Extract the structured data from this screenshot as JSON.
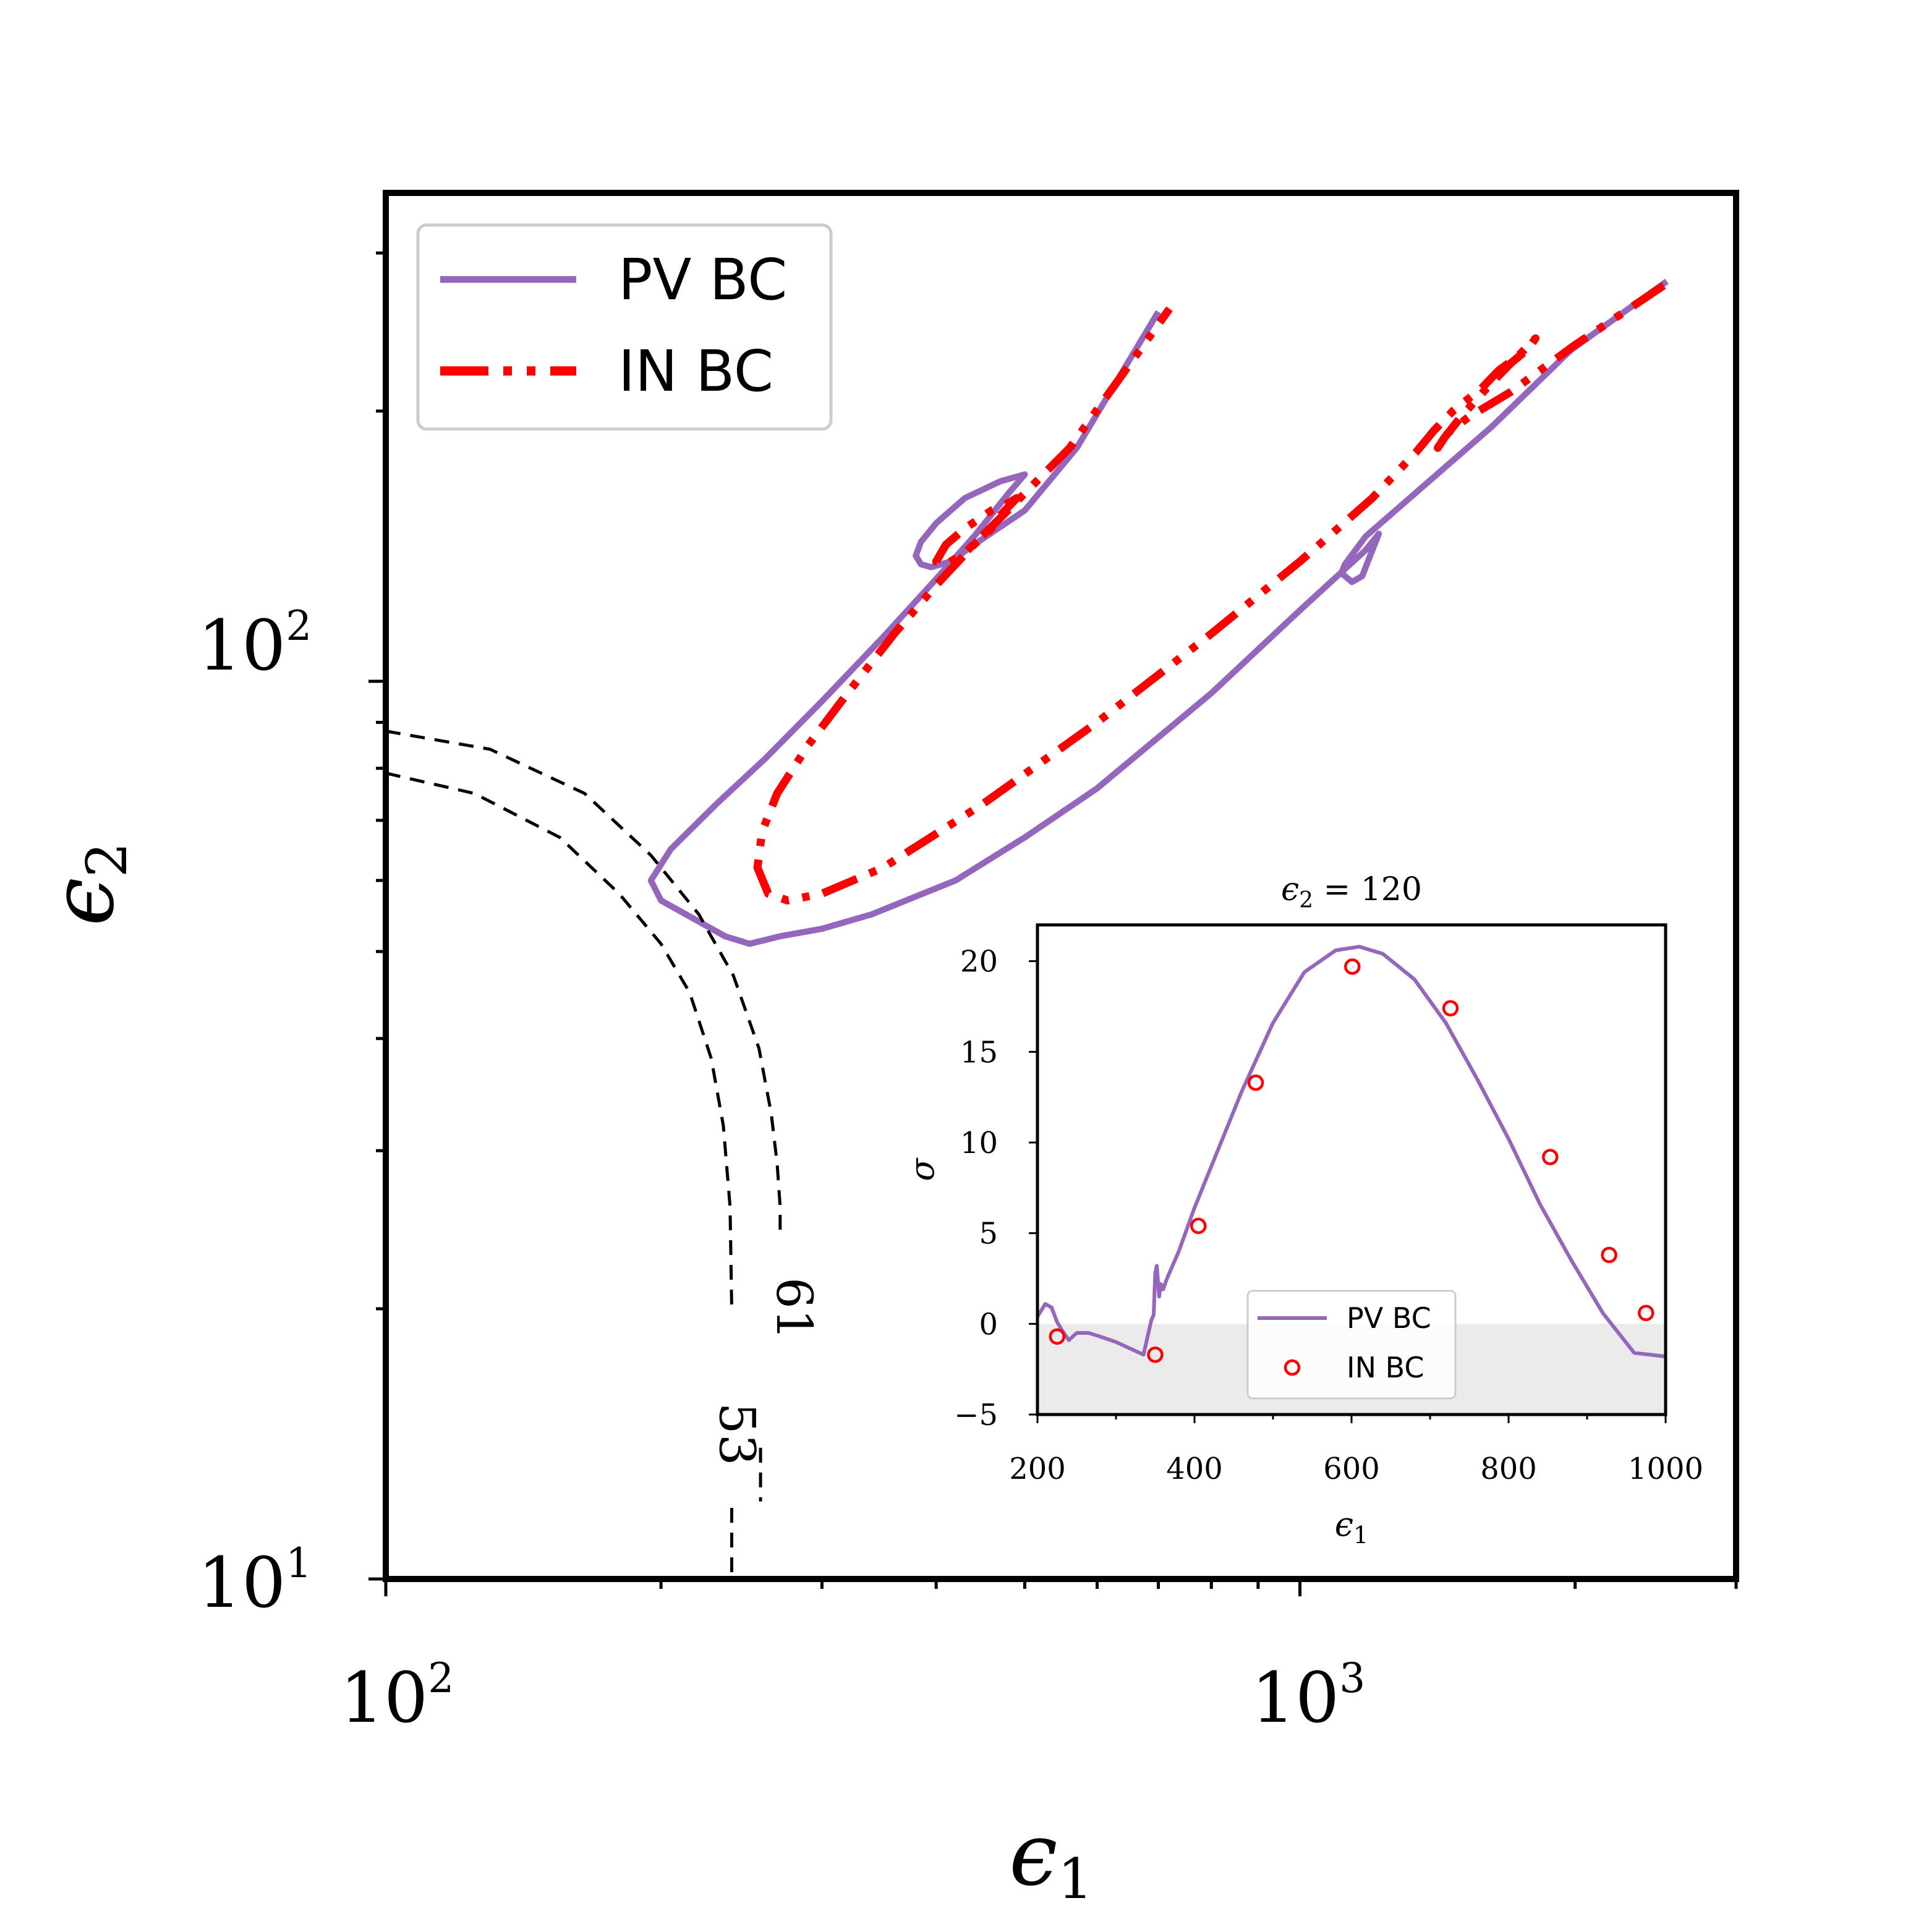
{
  "chart_data": [
    {
      "type": "line",
      "xlabel": "ϵ",
      "xlabel_sub": "1",
      "ylabel": "ϵ",
      "ylabel_sub": "2",
      "xscale": "log",
      "yscale": "log",
      "xlim": [
        100,
        3000
      ],
      "ylim": [
        10,
        350
      ],
      "x_tick_labels": [
        {
          "value": 100,
          "base": "10",
          "exp": "2"
        },
        {
          "value": 1000,
          "base": "10",
          "exp": "3"
        }
      ],
      "y_tick_labels": [
        {
          "value": 10,
          "base": "10",
          "exp": "1"
        },
        {
          "value": 100,
          "base": "10",
          "exp": "2"
        }
      ],
      "legend": {
        "position": "top-left",
        "entries": [
          "PV BC",
          "IN BC"
        ]
      },
      "series": [
        {
          "name": "PV BC",
          "color": "#9467bd",
          "style": "solid",
          "segments": [
            [
              [
                2520,
                279
              ],
              [
                1980,
                234
              ],
              [
                1620,
                192
              ],
              [
                1180,
                145
              ],
              [
                1120,
                135
              ],
              [
                1110,
                132
              ],
              [
                1140,
                129
              ],
              [
                1170,
                131
              ],
              [
                1190,
                137
              ],
              [
                1220,
                146
              ],
              [
                1180,
                140
              ],
              [
                1000,
                120
              ],
              [
                800,
                97
              ],
              [
                600,
                76
              ],
              [
                500,
                67
              ],
              [
                420,
                60
              ],
              [
                340,
                55
              ],
              [
                300,
                53
              ],
              [
                270,
                52
              ],
              [
                250,
                51
              ],
              [
                235,
                52
              ],
              [
                220,
                54
              ],
              [
                200,
                57
              ],
              [
                195,
                60
              ],
              [
                205,
                65
              ],
              [
                230,
                73
              ],
              [
                260,
                82
              ],
              [
                300,
                95
              ],
              [
                350,
                112
              ],
              [
                400,
                130
              ],
              [
                440,
                145
              ],
              [
                480,
                162
              ],
              [
                500,
                170
              ],
              [
                470,
                167
              ],
              [
                430,
                160
              ],
              [
                400,
                150
              ],
              [
                385,
                143
              ],
              [
                380,
                138
              ],
              [
                385,
                135
              ],
              [
                395,
                134
              ],
              [
                415,
                136
              ],
              [
                440,
                142
              ],
              [
                500,
                155
              ],
              [
                570,
                182
              ],
              [
                700,
                258
              ]
            ]
          ]
        },
        {
          "name": "IN BC",
          "color": "#ff0000",
          "style": "dashdot",
          "segments": [
            [
              [
                2500,
                276
              ],
              [
                2000,
                237
              ],
              [
                1700,
                210
              ],
              [
                1530,
                197
              ],
              [
                1460,
                190
              ],
              [
                1430,
                186
              ],
              [
                1415,
                182
              ],
              [
                1440,
                187
              ],
              [
                1500,
                197
              ],
              [
                1600,
                212
              ],
              [
                1700,
                226
              ],
              [
                1780,
                235
              ],
              [
                1810,
                241
              ],
              [
                1730,
                230
              ],
              [
                1650,
                222
              ],
              [
                1580,
                212
              ],
              [
                1470,
                200
              ],
              [
                1400,
                190
              ],
              [
                1340,
                180
              ],
              [
                1200,
                160
              ],
              [
                1100,
                148
              ],
              [
                1000,
                136
              ],
              [
                800,
                113
              ],
              [
                600,
                90
              ],
              [
                450,
                73
              ],
              [
                350,
                62
              ],
              [
                300,
                58
              ],
              [
                275,
                57
              ],
              [
                262,
                58
              ],
              [
                255,
                62
              ],
              [
                258,
                68
              ],
              [
                268,
                75
              ],
              [
                290,
                85
              ],
              [
                320,
                97
              ],
              [
                360,
                113
              ],
              [
                400,
                128
              ],
              [
                440,
                142
              ],
              [
                460,
                148
              ],
              [
                470,
                153
              ],
              [
                490,
                160
              ],
              [
                480,
                158
              ],
              [
                460,
                155
              ],
              [
                430,
                148
              ],
              [
                410,
                142
              ],
              [
                400,
                136
              ],
              [
                410,
                135
              ],
              [
                430,
                139
              ],
              [
                470,
                152
              ],
              [
                500,
                162
              ],
              [
                560,
                182
              ],
              [
                720,
                260
              ]
            ]
          ]
        },
        {
          "name": "",
          "color": "#000000",
          "style": "dashed",
          "segments": [
            [
              [
                100,
                88
              ],
              [
                130,
                84
              ],
              [
                165,
                75
              ],
              [
                195,
                64
              ],
              [
                220,
                55
              ],
              [
                240,
                47
              ],
              [
                256,
                39
              ],
              [
                264,
                33
              ],
              [
                268,
                29
              ],
              [
                270,
                26
              ],
              [
                270,
                24
              ]
            ],
            [
              [
                257,
                14
              ],
              [
                257,
                12.2
              ]
            ],
            [
              [
                100,
                79
              ],
              [
                125,
                75
              ],
              [
                155,
                67
              ],
              [
                180,
                58
              ],
              [
                200,
                51
              ],
              [
                215,
                45
              ],
              [
                227,
                38
              ],
              [
                234,
                32
              ],
              [
                238,
                26
              ],
              [
                239,
                20
              ]
            ],
            [
              [
                239,
                12
              ],
              [
                239,
                10
              ]
            ]
          ]
        }
      ],
      "annotations": [
        {
          "text": "61",
          "x": 268,
          "y": 20,
          "rotation": 90
        },
        {
          "text": "53",
          "x": 232,
          "y": 14.5,
          "rotation": 90
        }
      ]
    },
    {
      "type": "line",
      "title": "ϵ",
      "title_sub": "2",
      "title_rest": " = 120",
      "xlabel": "ϵ",
      "xlabel_sub": "1",
      "ylabel": "σ",
      "xlim": [
        200,
        1000
      ],
      "ylim": [
        -5,
        22
      ],
      "x_tick_labels": [
        "200",
        "400",
        "600",
        "800",
        "1000"
      ],
      "x_ticks": [
        200,
        400,
        600,
        800,
        1000
      ],
      "x_minor_ticks": [
        300,
        500,
        700,
        900
      ],
      "y_tick_labels": [
        "−5",
        "0",
        "5",
        "10",
        "15",
        "20"
      ],
      "y_ticks": [
        -5,
        0,
        5,
        10,
        15,
        20
      ],
      "shaded_region": {
        "y_from": -5,
        "y_to": 0,
        "color": "#ebebeb"
      },
      "legend": {
        "position": "bottom-center",
        "entries": [
          "PV BC",
          "IN BC"
        ]
      },
      "series": [
        {
          "name": "PV BC",
          "color": "#9467bd",
          "style": "solid",
          "x": [
            200,
            210,
            218,
            225,
            232,
            240,
            250,
            265,
            280,
            300,
            320,
            335,
            345,
            348,
            350,
            352,
            355,
            357,
            360,
            365,
            380,
            400,
            430,
            460,
            500,
            540,
            580,
            610,
            640,
            680,
            720,
            760,
            800,
            840,
            880,
            920,
            960,
            1000
          ],
          "y": [
            0.4,
            1.1,
            0.9,
            0.1,
            -0.4,
            -0.9,
            -0.5,
            -0.5,
            -0.7,
            -1.0,
            -1.4,
            -1.7,
            0.2,
            0.5,
            2.8,
            3.2,
            1.5,
            2.2,
            1.9,
            2.5,
            4.0,
            6.4,
            9.6,
            12.8,
            16.6,
            19.4,
            20.6,
            20.8,
            20.4,
            19.0,
            16.6,
            13.5,
            10.2,
            6.6,
            3.5,
            0.6,
            -1.6,
            -1.8
          ]
        },
        {
          "name": "IN BC",
          "color": "#ff0000",
          "style": "markers",
          "marker": "open-circle",
          "x": [
            225,
            350,
            405,
            478,
            601,
            726,
            853,
            928,
            975
          ],
          "y": [
            -0.7,
            -1.7,
            5.4,
            13.3,
            19.7,
            17.4,
            9.2,
            3.8,
            0.6
          ]
        }
      ]
    }
  ]
}
